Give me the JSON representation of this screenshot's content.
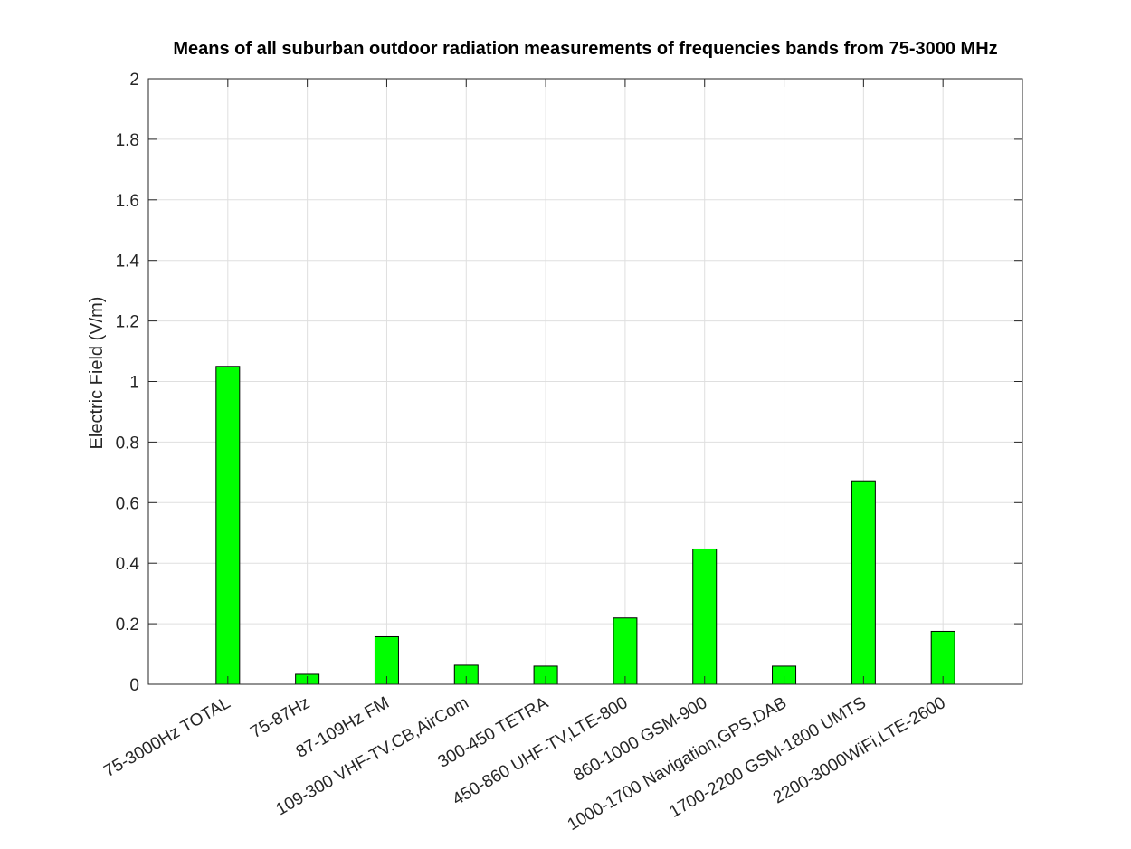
{
  "chart_data": {
    "type": "bar",
    "title": "Means of all suburban outdoor radiation measurements of frequencies bands from 75-3000 MHz",
    "xlabel": "",
    "ylabel": "Electric Field (V/m)",
    "ylim": [
      0,
      2
    ],
    "yticks": [
      "0",
      "0.2",
      "0.4",
      "0.6",
      "0.8",
      "1",
      "1.2",
      "1.4",
      "1.6",
      "1.8",
      "2"
    ],
    "ytick_values": [
      0,
      0.2,
      0.4,
      0.6,
      0.8,
      1,
      1.2,
      1.4,
      1.6,
      1.8,
      2
    ],
    "grid": true,
    "bar_color": "#00ff00",
    "categories": [
      "75-3000Hz TOTAL",
      "75-87Hz",
      "87-109Hz FM",
      "109-300 VHF-TV,CB,AirCom",
      "300-450 TETRA",
      "450-860 UHF-TV,LTE-800",
      "860-1000 GSM-900",
      "1000-1700 Navigation,GPS,DAB",
      "1700-2200 GSM-1800 UMTS",
      "2200-3000WiFi,LTE-2600"
    ],
    "values": [
      1.05,
      0.033,
      0.157,
      0.063,
      0.06,
      0.219,
      0.447,
      0.06,
      0.672,
      0.175
    ]
  }
}
